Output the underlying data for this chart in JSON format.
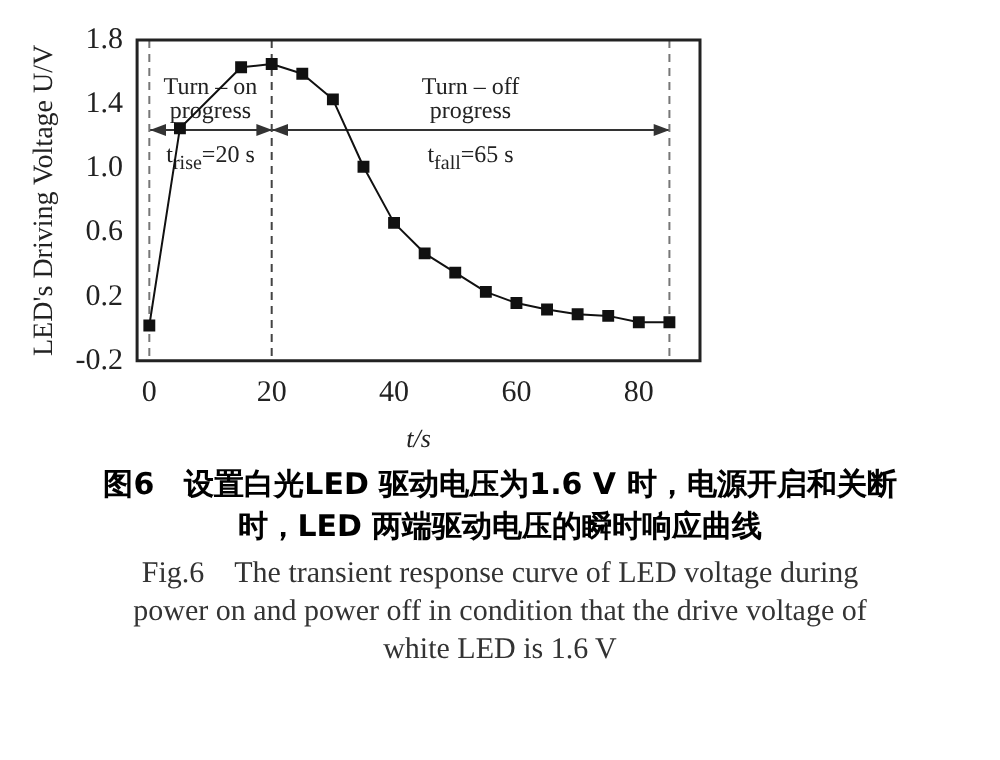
{
  "chart_data": {
    "type": "line",
    "title": "图6　设置白光LED 驱动电压为1.6 V 时，电源开启和关断时，LED 两端驱动电压的瞬时响应曲线",
    "subtitle": "Fig.6　The transient response curve of LED voltage during power on and power off in condition that the drive voltage of white LED is 1.6 V",
    "xlabel": "t/s",
    "ylabel": "LED's Driving Voltage U/V",
    "x": [
      0,
      5,
      15,
      20,
      25,
      30,
      35,
      40,
      45,
      50,
      55,
      60,
      65,
      70,
      75,
      80,
      85
    ],
    "series": [
      {
        "color": "#111111",
        "values": [
          0.02,
          1.25,
          1.63,
          1.65,
          1.59,
          1.43,
          1.01,
          0.66,
          0.47,
          0.35,
          0.23,
          0.16,
          0.12,
          0.09,
          0.08,
          0.04,
          0.04
        ]
      }
    ],
    "xlim": [
      -2,
      90
    ],
    "xticks": [
      0,
      20,
      40,
      60,
      80
    ],
    "ylim": [
      -0.2,
      1.8
    ],
    "yticks": [
      -0.2,
      0.2,
      0.6,
      {
        "value": 1,
        "label": "1.0"
      },
      1.4,
      1.8
    ],
    "grid": false,
    "legend": false,
    "marker": "square",
    "line_style": "solid",
    "ref_lines": [
      {
        "axis": "x",
        "value": 0,
        "color": "#777777",
        "line_style": "dashed"
      },
      {
        "axis": "x",
        "value": 20,
        "color": "#444444",
        "line_style": "dashed"
      },
      {
        "axis": "x",
        "value": 85,
        "color": "#777777",
        "line_style": "dashed"
      }
    ],
    "annotations": [
      "Turn – on progress",
      "t$_{rise}$=20 s",
      "Turn – off progress",
      "t$_{fall}$=65 s"
    ]
  }
}
